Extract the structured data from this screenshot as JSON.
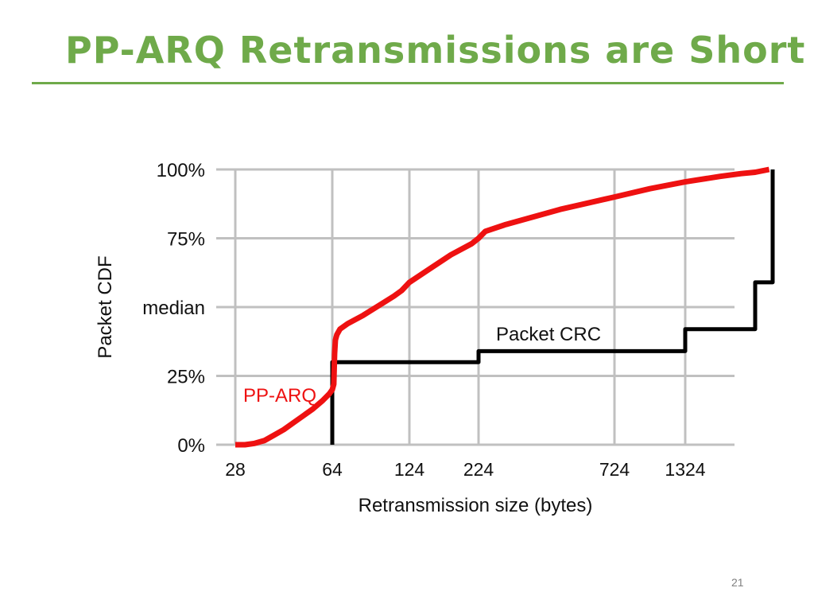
{
  "slide": {
    "title": "PP-ARQ Retransmissions are Short",
    "page_number": "21"
  },
  "colors": {
    "title": "#6faa4a",
    "pparq": "#ee1111",
    "crc": "#000000",
    "grid": "#c0c0c0"
  },
  "chart_data": {
    "type": "line",
    "xlabel": "Retransmission size (bytes)",
    "ylabel": "Packet CDF",
    "x_scale": "categorical-ticks",
    "x_ticks": [
      "28",
      "64",
      "124",
      "224",
      "724",
      "1324"
    ],
    "y_ticks": [
      {
        "value": 0,
        "label": "0%"
      },
      {
        "value": 25,
        "label": "25%"
      },
      {
        "value": 50,
        "label": "median"
      },
      {
        "value": 75,
        "label": "75%"
      },
      {
        "value": 100,
        "label": "100%"
      }
    ],
    "ylim": [
      0,
      100
    ],
    "grid": true,
    "series": [
      {
        "name": "PP-ARQ",
        "label_position": "left-of-curve",
        "points": [
          [
            0,
            0
          ],
          [
            0.1,
            0
          ],
          [
            0.2,
            0.5
          ],
          [
            0.3,
            1.5
          ],
          [
            0.4,
            3.5
          ],
          [
            0.5,
            5.5
          ],
          [
            0.6,
            8
          ],
          [
            0.7,
            10.5
          ],
          [
            0.8,
            13
          ],
          [
            0.9,
            16
          ],
          [
            0.97,
            18.5
          ],
          [
            1.0,
            20
          ],
          [
            1.02,
            22
          ],
          [
            1.03,
            33
          ],
          [
            1.04,
            38
          ],
          [
            1.06,
            40
          ],
          [
            1.1,
            42
          ],
          [
            1.2,
            44
          ],
          [
            1.4,
            47
          ],
          [
            1.6,
            50.5
          ],
          [
            1.8,
            54
          ],
          [
            1.9,
            56
          ],
          [
            2.0,
            59
          ],
          [
            2.3,
            64
          ],
          [
            2.6,
            69
          ],
          [
            2.9,
            73
          ],
          [
            3.0,
            75
          ],
          [
            3.05,
            77.5
          ],
          [
            3.2,
            80
          ],
          [
            3.6,
            85.5
          ],
          [
            4.0,
            90
          ],
          [
            4.5,
            93
          ],
          [
            5.0,
            95.5
          ],
          [
            5.5,
            97.5
          ],
          [
            5.8,
            98.5
          ],
          [
            6.0,
            99
          ],
          [
            6.2,
            100
          ]
        ]
      },
      {
        "name": "Packet CRC",
        "label_position": "above-line",
        "points": [
          [
            1.0,
            0
          ],
          [
            1.0,
            30
          ],
          [
            3.0,
            30
          ],
          [
            3.0,
            34
          ],
          [
            5.0,
            34
          ],
          [
            5.0,
            42
          ],
          [
            6.0,
            42
          ],
          [
            6.0,
            59
          ],
          [
            6.25,
            59
          ],
          [
            6.25,
            100
          ]
        ]
      }
    ]
  }
}
